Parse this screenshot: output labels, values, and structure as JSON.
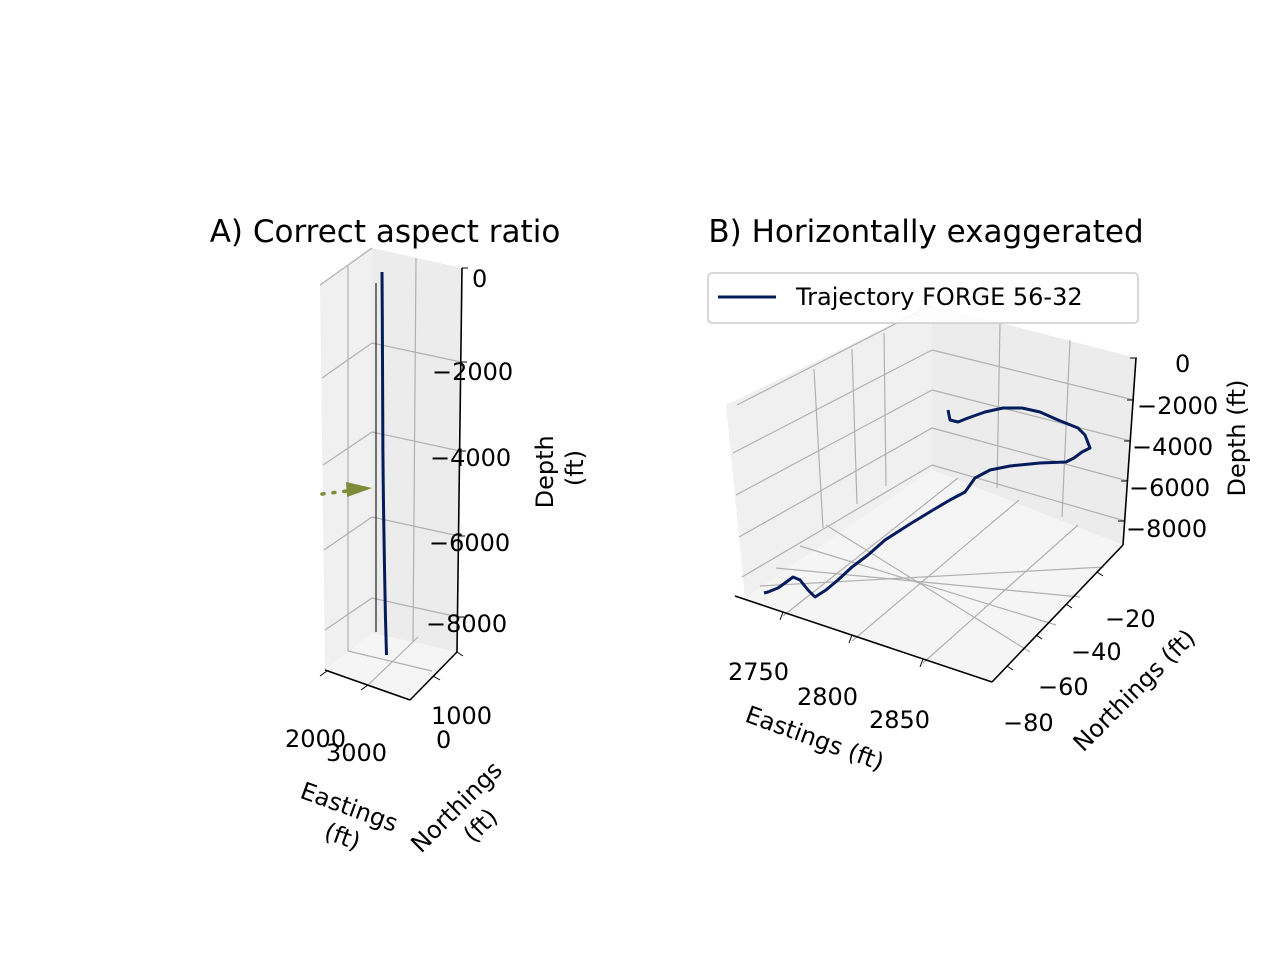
{
  "colors": {
    "trajectory": "#041c5c",
    "arrow": "#7d8a37",
    "pane_left": "#f0f0f0",
    "pane_right": "#ececec",
    "pane_floor": "#f5f5f5",
    "grid": "#b0b0b0"
  },
  "chart_data": [
    {
      "type": "line3d",
      "title": "A) Correct aspect ratio",
      "xlabel": "Eastings\n(ft)",
      "ylabel": "Northings\n(ft)",
      "zlabel": "Depth\n(ft)",
      "x_ticks": [
        "2000",
        "3000"
      ],
      "y_ticks": [
        "1000",
        "0"
      ],
      "z_ticks": [
        "0",
        "−2000",
        "−4000",
        "−6000",
        "−8000"
      ],
      "zlim": [
        -9000,
        0
      ],
      "series": [
        {
          "color": "#041c5c",
          "points": [
            {
              "x": 2730,
              "y": -2,
              "z": 0
            },
            {
              "x": 2740,
              "y": -3,
              "z": -1000
            },
            {
              "x": 2750,
              "y": -4,
              "z": -2000
            },
            {
              "x": 2760,
              "y": -5,
              "z": -3000
            },
            {
              "x": 2770,
              "y": -6,
              "z": -4000
            },
            {
              "x": 2780,
              "y": -8,
              "z": -4700
            },
            {
              "x": 2790,
              "y": -20,
              "z": -5400
            },
            {
              "x": 2810,
              "y": -40,
              "z": -6500
            },
            {
              "x": 2840,
              "y": -60,
              "z": -7700
            },
            {
              "x": 2880,
              "y": -75,
              "z": -8600
            }
          ]
        }
      ],
      "annotation": {
        "type": "dotted-arrow",
        "z": -4800
      }
    },
    {
      "type": "line3d",
      "title": "B) Horizontally exaggerated",
      "xlabel": "Eastings (ft)",
      "ylabel": "Northings (ft)",
      "zlabel": "Depth (ft)",
      "x_ticks": [
        "2750",
        "2800",
        "2850"
      ],
      "y_ticks": [
        "−20",
        "−40",
        "−60",
        "−80"
      ],
      "z_ticks": [
        "0",
        "−2000",
        "−4000",
        "−6000",
        "−8000"
      ],
      "legend": {
        "position": "top",
        "entries": [
          "Trajectory FORGE 56-32"
        ]
      },
      "series": [
        {
          "name": "Trajectory FORGE 56-32",
          "color": "#041c5c",
          "points": [
            {
              "x": 2730,
              "y": -2,
              "z": 0
            },
            {
              "x": 2745,
              "y": -3,
              "z": -2000
            },
            {
              "x": 2760,
              "y": -5,
              "z": -3500
            },
            {
              "x": 2775,
              "y": -7,
              "z": -4500
            },
            {
              "x": 2785,
              "y": -15,
              "z": -5200
            },
            {
              "x": 2800,
              "y": -30,
              "z": -6000
            },
            {
              "x": 2820,
              "y": -45,
              "z": -6800
            },
            {
              "x": 2840,
              "y": -60,
              "z": -7600
            },
            {
              "x": 2860,
              "y": -72,
              "z": -8300
            },
            {
              "x": 2880,
              "y": -78,
              "z": -8800
            }
          ]
        }
      ]
    }
  ]
}
